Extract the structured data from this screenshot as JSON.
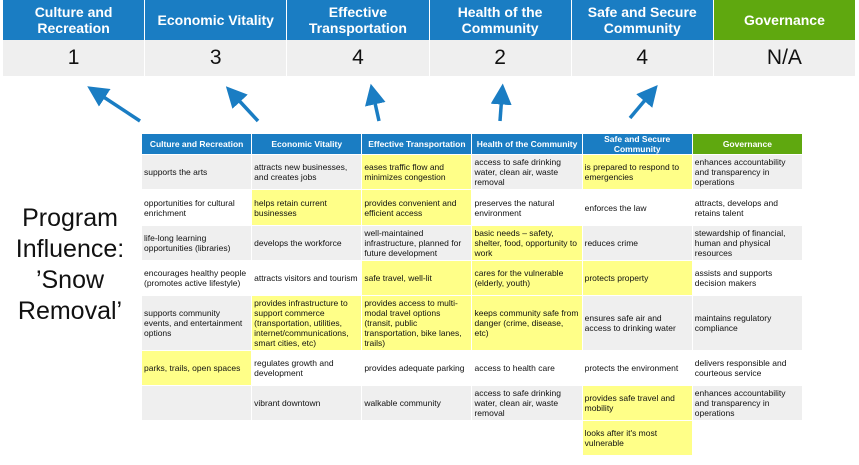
{
  "summary": {
    "columns": [
      {
        "label": "Culture and Recreation",
        "score": "1"
      },
      {
        "label": "Economic Vitality",
        "score": "3"
      },
      {
        "label": "Effective Transportation",
        "score": "4"
      },
      {
        "label": "Health of the Community",
        "score": "2"
      },
      {
        "label": "Safe and Secure Community",
        "score": "4"
      },
      {
        "label": "Governance",
        "score": "N/A"
      }
    ]
  },
  "colors": {
    "header_blue": "#1a7dc3",
    "governance_green": "#5fa80f",
    "highlight_yellow": "#ffff88",
    "arrow_blue": "#1a7dc3"
  },
  "side_label": {
    "line1": "Program",
    "line2": "Influence:",
    "line3": "’Snow",
    "line4": "Removal’"
  },
  "table": {
    "headers": [
      "Culture and Recreation",
      "Economic Vitality",
      "Effective Transportation",
      "Health of the Community",
      "Safe and Secure Community",
      "Governance"
    ],
    "rows": [
      [
        {
          "t": "supports the arts"
        },
        {
          "t": "attracts new businesses, and creates jobs"
        },
        {
          "t": "eases traffic flow and minimizes congestion",
          "h": true
        },
        {
          "t": "access to safe drinking water, clean air, waste removal"
        },
        {
          "t": "is prepared to respond to emergencies",
          "h": true
        },
        {
          "t": "enhances accountability and transparency in operations"
        }
      ],
      [
        {
          "t": "opportunities for cultural enrichment"
        },
        {
          "t": "helps retain current businesses",
          "h": true
        },
        {
          "t": "provides convenient and efficient access",
          "h": true
        },
        {
          "t": "preserves the natural environment"
        },
        {
          "t": "enforces the law"
        },
        {
          "t": "attracts, develops and retains talent"
        }
      ],
      [
        {
          "t": "life-long learning opportunities (libraries)"
        },
        {
          "t": "develops the workforce"
        },
        {
          "t": "well-maintained infrastructure, planned for future development"
        },
        {
          "t": "basic needs – safety, shelter, food, opportunity to work",
          "h": true
        },
        {
          "t": "reduces crime"
        },
        {
          "t": "stewardship of financial, human and physical resources"
        }
      ],
      [
        {
          "t": "encourages healthy people (promotes active lifestyle)"
        },
        {
          "t": "attracts visitors and tourism"
        },
        {
          "t": "safe travel, well-lit",
          "h": true
        },
        {
          "t": "cares for the vulnerable (elderly, youth)",
          "h": true
        },
        {
          "t": "protects property",
          "h": true
        },
        {
          "t": "assists and supports decision makers"
        }
      ],
      [
        {
          "t": "supports community events, and entertainment options"
        },
        {
          "t": "provides infrastructure to support commerce (transportation, utilities, internet/communications, smart cities, etc)",
          "h": true
        },
        {
          "t": "provides access to multi-modal travel options (transit, public transportation, bike lanes, trails)",
          "h": true
        },
        {
          "t": "keeps community safe from danger (crime, disease, etc)",
          "h": true
        },
        {
          "t": "ensures safe air and access to drinking water"
        },
        {
          "t": "maintains regulatory compliance"
        }
      ],
      [
        {
          "t": "parks, trails, open spaces",
          "h": true
        },
        {
          "t": "regulates growth and development"
        },
        {
          "t": "provides adequate parking"
        },
        {
          "t": "access to health care"
        },
        {
          "t": "protects the environment"
        },
        {
          "t": "delivers responsible and courteous service"
        }
      ],
      [
        {
          "t": ""
        },
        {
          "t": "vibrant downtown"
        },
        {
          "t": "walkable community"
        },
        {
          "t": "access to safe drinking water, clean air, waste removal"
        },
        {
          "t": "provides safe travel and mobility",
          "h": true
        },
        {
          "t": "enhances accountability and transparency in operations"
        }
      ],
      [
        {
          "t": ""
        },
        {
          "t": ""
        },
        {
          "t": ""
        },
        {
          "t": ""
        },
        {
          "t": "looks after it's most vulnerable",
          "h": true
        },
        {
          "t": ""
        }
      ]
    ]
  }
}
